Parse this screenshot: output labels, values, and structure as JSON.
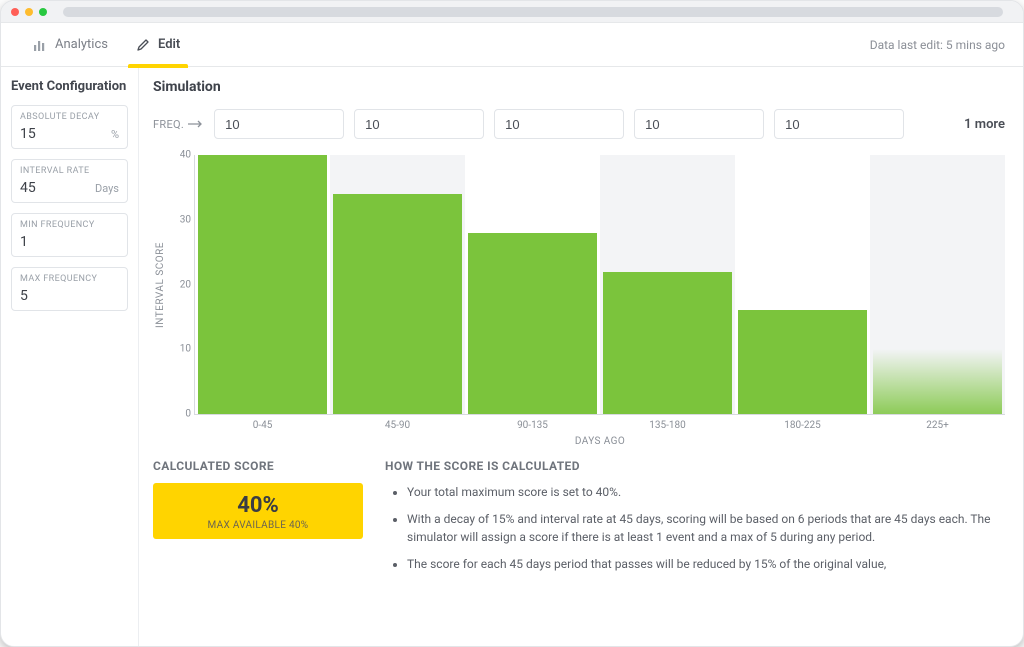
{
  "window": {
    "dots": [
      "#ff5f57",
      "#febc2e",
      "#28c840"
    ],
    "urlbar_color": "#d7dadf"
  },
  "tabs": {
    "analytics": "Analytics",
    "edit": "Edit",
    "meta": "Data last edit: 5 mins ago",
    "active_underline": "#ffd400"
  },
  "sidebar": {
    "title": "Event Configuration",
    "fields": {
      "absolute_decay": {
        "label": "ABSOLUTE DECAY",
        "value": "15",
        "unit": "%"
      },
      "interval_rate": {
        "label": "INTERVAL RATE",
        "value": "45",
        "unit": "Days"
      },
      "min_frequency": {
        "label": "MIN FREQUENCY",
        "value": "1",
        "unit": ""
      },
      "max_frequency": {
        "label": "MAX FREQUENCY",
        "value": "5",
        "unit": ""
      }
    }
  },
  "main": {
    "title": "Simulation",
    "freq_label": "FREQ.",
    "freq_values": [
      "10",
      "10",
      "10",
      "10",
      "10"
    ],
    "more_text": "1 more"
  },
  "chart": {
    "type": "bar",
    "y_label": "INTERVAL SCORE",
    "x_label": "DAYS AGO",
    "ylim": [
      0,
      40
    ],
    "yticks": [
      0,
      10,
      20,
      30,
      40
    ],
    "categories": [
      "0-45",
      "45-90",
      "90-135",
      "135-180",
      "180-225",
      "225+"
    ],
    "values": [
      40,
      34,
      28,
      22,
      16,
      10
    ],
    "bar_color": "#7bc43c",
    "last_bar_gradient_top": "rgba(123,196,60,0.0)",
    "last_bar_gradient_bottom": "rgba(123,196,60,0.85)",
    "alt_col_bg": "#f3f4f6",
    "axis_color": "#d7dadf",
    "tick_color": "#8a8f97",
    "tick_fontsize": 10
  },
  "score": {
    "title": "CALCULATED SCORE",
    "value": "40%",
    "sub": "MAX AVAILABLE 40%",
    "box_bg": "#ffd400"
  },
  "explain": {
    "title": "HOW THE SCORE IS CALCULATED",
    "bullets": [
      "Your total maximum score is set to 40%.",
      "With a decay of 15% and interval rate at 45 days, scoring will be based on 6 periods that are 45 days each. The simulator will assign a score if there is at least 1 event and a max of 5 during any period.",
      "The score for each 45 days period that passes will be reduced by 15% of the original value,"
    ]
  }
}
